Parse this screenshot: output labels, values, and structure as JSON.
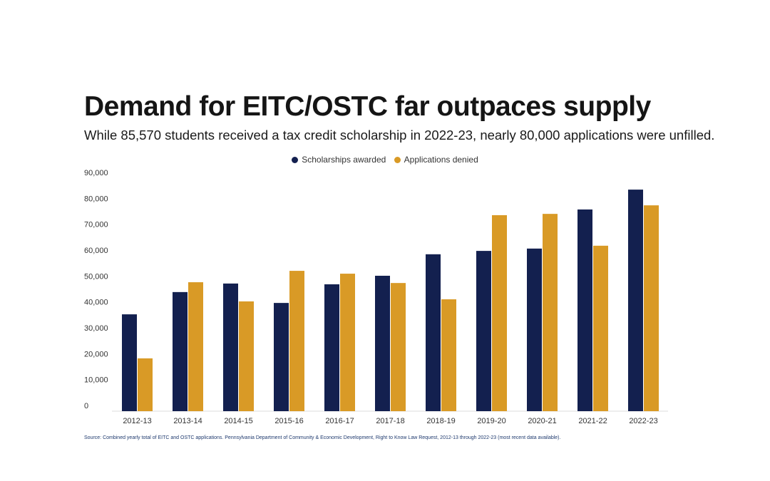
{
  "title": "Demand for EITC/OSTC far outpaces supply",
  "subtitle": "While 85,570 students received a tax credit scholarship in 2022-23, nearly 80,000 applications were unfilled.",
  "source": "Source: Combined yearly total of EITC and OSTC applications. Pennsylvania Department of Community & Economic Development, Right to Know Law Request, 2012-13 through 2022-23 (most recent data available).",
  "chart_data": {
    "type": "bar",
    "title": "Demand for EITC/OSTC far outpaces supply",
    "xlabel": "",
    "ylabel": "",
    "ylim": [
      0,
      90000
    ],
    "yticks": [
      "0",
      "10,000",
      "20,000",
      "30,000",
      "40,000",
      "50,000",
      "60,000",
      "70,000",
      "80,000",
      "90,000"
    ],
    "grid": false,
    "legend": "top-center",
    "categories": [
      "2012-13",
      "2013-14",
      "2014-15",
      "2015-16",
      "2016-17",
      "2017-18",
      "2018-19",
      "2019-20",
      "2020-21",
      "2021-22",
      "2022-23"
    ],
    "series": [
      {
        "name": "Scholarships awarded",
        "color": "#13204f",
        "values": [
          37400,
          46000,
          49300,
          41800,
          49000,
          52300,
          60600,
          61900,
          62800,
          77900,
          85570
        ]
      },
      {
        "name": "Applications denied",
        "color": "#d99a26",
        "values": [
          20400,
          49800,
          42400,
          54200,
          53100,
          49500,
          43200,
          75700,
          76200,
          63900,
          79500
        ]
      }
    ]
  }
}
